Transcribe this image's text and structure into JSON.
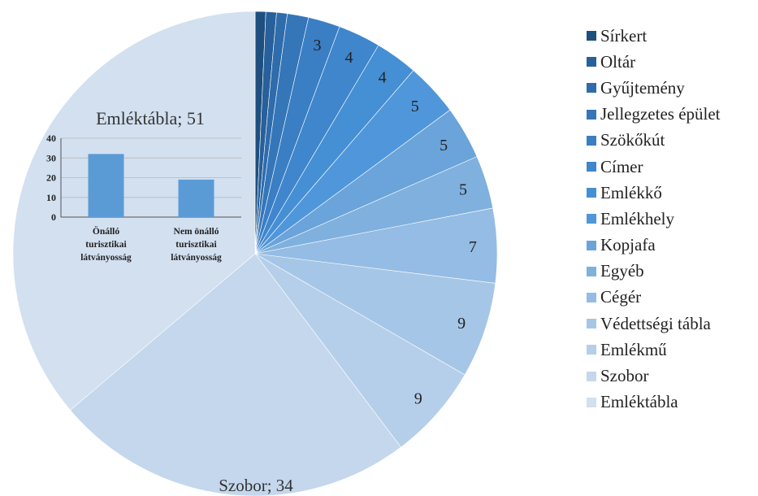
{
  "chart_data": [
    {
      "type": "pie",
      "title": "",
      "slices": [
        {
          "label": "Sírkert",
          "value": 1,
          "value_label": "",
          "color": "#1f4f7e"
        },
        {
          "label": "Oltár",
          "value": 1,
          "value_label": "",
          "color": "#27609a"
        },
        {
          "label": "Gyűjtemény",
          "value": 1,
          "value_label": "",
          "color": "#2e6cab"
        },
        {
          "label": "Jellegzetes épület",
          "value": 2,
          "value_label": "",
          "color": "#3576b9"
        },
        {
          "label": "Szökőkút",
          "value": 3,
          "value_label": "3",
          "color": "#3a7ec4"
        },
        {
          "label": "Címer",
          "value": 4,
          "value_label": "4",
          "color": "#3f86cc"
        },
        {
          "label": "Emlékkő",
          "value": 4,
          "value_label": "4",
          "color": "#458fd4"
        },
        {
          "label": "Emlékhely",
          "value": 5,
          "value_label": "5",
          "color": "#4f97da"
        },
        {
          "label": "Kopjafa",
          "value": 5,
          "value_label": "5",
          "color": "#6aa4da"
        },
        {
          "label": "Egyéb",
          "value": 5,
          "value_label": "5",
          "color": "#80b0de"
        },
        {
          "label": "Cégér",
          "value": 7,
          "value_label": "7",
          "color": "#94bce4"
        },
        {
          "label": "Védettségi tábla",
          "value": 9,
          "value_label": "9",
          "color": "#a6c6e7"
        },
        {
          "label": "Emlékmű",
          "value": 9,
          "value_label": "9",
          "color": "#b5cfea"
        },
        {
          "label": "Szobor",
          "value": 34,
          "value_label": "Szobor; 34",
          "color": "#c4d7ed"
        },
        {
          "label": "Emléktábla",
          "value": 51,
          "value_label": "",
          "color": "#d2e0f0"
        }
      ],
      "legend_position": "right"
    },
    {
      "type": "bar",
      "title": "Emléktábla; 51",
      "categories": [
        "Önálló turisztikai látványosság",
        "Nem önálló turisztikai látványosság"
      ],
      "category_lines": [
        [
          "Önálló",
          "turisztikai",
          "látványosság"
        ],
        [
          "Nem önálló",
          "turisztikai",
          "látványosság"
        ]
      ],
      "values": [
        32,
        19
      ],
      "ylim": [
        0,
        40
      ],
      "yticks": [
        "0",
        "10",
        "20",
        "30",
        "40"
      ],
      "grid": true,
      "bar_color": "#5b9bd5"
    }
  ]
}
